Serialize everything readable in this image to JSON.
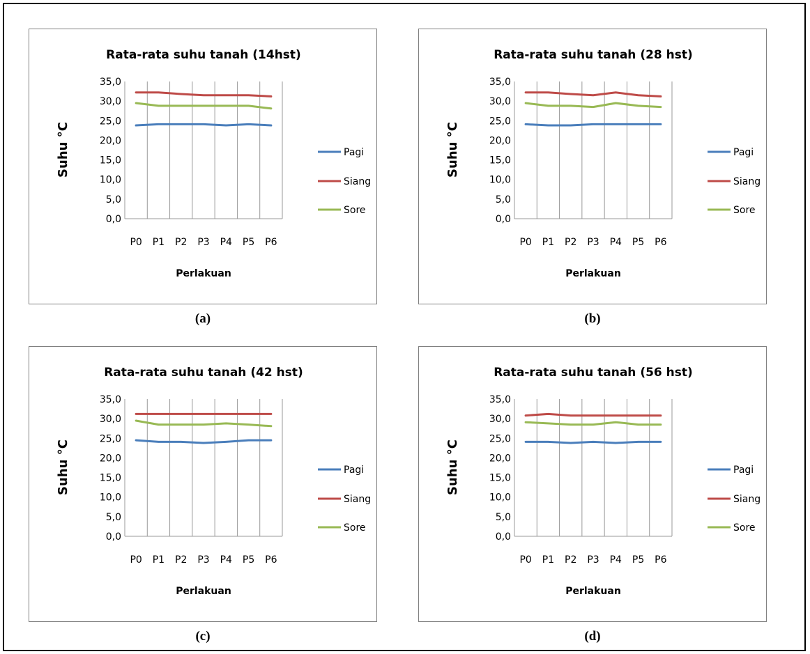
{
  "figure": {
    "captions": [
      "(a)",
      "(b)",
      "(c)",
      "(d)"
    ]
  },
  "chart_data": [
    {
      "type": "line",
      "title": "Rata-rata suhu tanah (14hst)",
      "xlabel": "Perlakuan",
      "ylabel": "Suhu °C",
      "categories": [
        "P0",
        "P1",
        "P2",
        "P3",
        "P4",
        "P5",
        "P6"
      ],
      "ylim": [
        0,
        35
      ],
      "yticks": [
        "0,0",
        "5,0",
        "10,0",
        "15,0",
        "20,0",
        "25,0",
        "30,0",
        "35,0"
      ],
      "grid": "vertical",
      "legend": "right",
      "series": [
        {
          "name": "Pagi",
          "color": "#4a7ebb",
          "values": [
            23.8,
            24.1,
            24.1,
            24.1,
            23.8,
            24.1,
            23.8
          ]
        },
        {
          "name": "Siang",
          "color": "#be4b48",
          "values": [
            32.2,
            32.2,
            31.8,
            31.5,
            31.5,
            31.5,
            31.2
          ]
        },
        {
          "name": "Sore",
          "color": "#98b954",
          "values": [
            29.5,
            28.8,
            28.8,
            28.8,
            28.8,
            28.8,
            28.1
          ]
        }
      ]
    },
    {
      "type": "line",
      "title": "Rata-rata suhu tanah (28 hst)",
      "xlabel": "Perlakuan",
      "ylabel": "Suhu °C",
      "categories": [
        "P0",
        "P1",
        "P2",
        "P3",
        "P4",
        "P5",
        "P6"
      ],
      "ylim": [
        0,
        35
      ],
      "yticks": [
        "0,0",
        "5,0",
        "10,0",
        "15,0",
        "20,0",
        "25,0",
        "30,0",
        "35,0"
      ],
      "grid": "vertical",
      "legend": "right",
      "series": [
        {
          "name": "Pagi",
          "color": "#4a7ebb",
          "values": [
            24.1,
            23.8,
            23.8,
            24.1,
            24.1,
            24.1,
            24.1
          ]
        },
        {
          "name": "Siang",
          "color": "#be4b48",
          "values": [
            32.2,
            32.2,
            31.8,
            31.5,
            32.2,
            31.5,
            31.2
          ]
        },
        {
          "name": "Sore",
          "color": "#98b954",
          "values": [
            29.5,
            28.8,
            28.8,
            28.5,
            29.5,
            28.8,
            28.5
          ]
        }
      ]
    },
    {
      "type": "line",
      "title": "Rata-rata suhu tanah (42 hst)",
      "xlabel": "Perlakuan",
      "ylabel": "Suhu °C",
      "categories": [
        "P0",
        "P1",
        "P2",
        "P3",
        "P4",
        "P5",
        "P6"
      ],
      "ylim": [
        0,
        35
      ],
      "yticks": [
        "0,0",
        "5,0",
        "10,0",
        "15,0",
        "20,0",
        "25,0",
        "30,0",
        "35,0"
      ],
      "grid": "vertical",
      "legend": "right",
      "series": [
        {
          "name": "Pagi",
          "color": "#4a7ebb",
          "values": [
            24.5,
            24.1,
            24.1,
            23.8,
            24.1,
            24.5,
            24.5
          ]
        },
        {
          "name": "Siang",
          "color": "#be4b48",
          "values": [
            31.2,
            31.2,
            31.2,
            31.2,
            31.2,
            31.2,
            31.2
          ]
        },
        {
          "name": "Sore",
          "color": "#98b954",
          "values": [
            29.5,
            28.5,
            28.5,
            28.5,
            28.8,
            28.5,
            28.1
          ]
        }
      ]
    },
    {
      "type": "line",
      "title": "Rata-rata suhu tanah (56 hst)",
      "xlabel": "Perlakuan",
      "ylabel": "Suhu °C",
      "categories": [
        "P0",
        "P1",
        "P2",
        "P3",
        "P4",
        "P5",
        "P6"
      ],
      "ylim": [
        0,
        35
      ],
      "yticks": [
        "0,0",
        "5,0",
        "10,0",
        "15,0",
        "20,0",
        "25,0",
        "30,0",
        "35,0"
      ],
      "grid": "vertical",
      "legend": "right",
      "series": [
        {
          "name": "Pagi",
          "color": "#4a7ebb",
          "values": [
            24.1,
            24.1,
            23.8,
            24.1,
            23.8,
            24.1,
            24.1
          ]
        },
        {
          "name": "Siang",
          "color": "#be4b48",
          "values": [
            30.8,
            31.2,
            30.8,
            30.8,
            30.8,
            30.8,
            30.8
          ]
        },
        {
          "name": "Sore",
          "color": "#98b954",
          "values": [
            29.1,
            28.8,
            28.5,
            28.5,
            29.1,
            28.5,
            28.5
          ]
        }
      ]
    }
  ]
}
